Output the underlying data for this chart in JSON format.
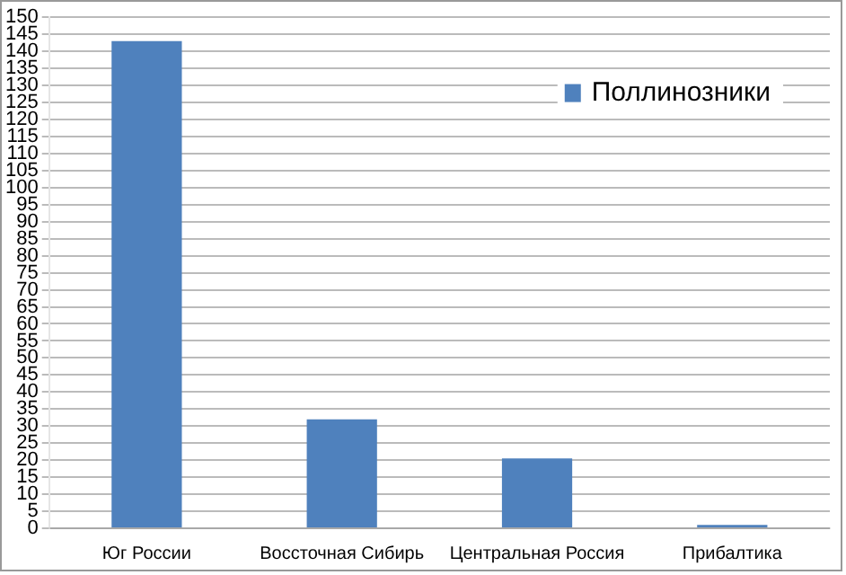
{
  "chart_data": {
    "type": "bar",
    "categories": [
      "Юг России",
      "Воссточная Сибирь",
      "Центральная Россия",
      "Прибалтика"
    ],
    "series": [
      {
        "name": "Поллинозники",
        "color": "#4f81bd",
        "values": [
          143,
          32,
          20.5,
          1
        ]
      }
    ],
    "ylim": [
      0,
      150
    ],
    "yticks": [
      0,
      5,
      10,
      15,
      20,
      25,
      30,
      35,
      40,
      45,
      50,
      55,
      60,
      65,
      70,
      75,
      80,
      85,
      90,
      95,
      100,
      105,
      110,
      115,
      120,
      125,
      130,
      135,
      140,
      145,
      150
    ],
    "grid": "y",
    "legend": "right"
  }
}
